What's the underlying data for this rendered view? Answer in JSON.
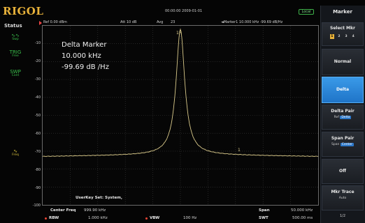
{
  "brand": {
    "logo_text": "RIGOL"
  },
  "header": {
    "datetime": "00:00:00 2009-01-01",
    "remote_state": "Local",
    "ref_level": "Ref 0.00 dBm",
    "attenuation": "Att  10 dB",
    "avg_label": "Avg",
    "avg_count": "23",
    "marker_readout": "◄Marker1  10.000 kHz  -99.69 dB/Hz"
  },
  "status": {
    "title": "Status",
    "items": [
      {
        "label": "Swp",
        "icon": "sweep-wave-icon",
        "glyph": "∿∿"
      },
      {
        "label": "Free",
        "icon": "trigger-free-icon",
        "glyph": "TRIG"
      },
      {
        "label": "Cont",
        "icon": "sweep-cont-icon",
        "glyph": "SWP"
      },
      {
        "label": "Freq",
        "icon": "frequency-icon",
        "glyph": "∿"
      }
    ]
  },
  "y_axis": {
    "labels": [
      "-10",
      "-20",
      "-30",
      "-40",
      "-50",
      "-60",
      "-70",
      "-80",
      "-90",
      "-100"
    ]
  },
  "marker_info": {
    "title": "Delta Marker",
    "freq": "10.000 kHz",
    "level": "-99.69 dB /Hz"
  },
  "trace": {
    "marker_tag_top": "1R",
    "marker_tag_delta": "1",
    "color": "#d9c98a",
    "peak_fraction_x": 0.5,
    "floor_db": -72,
    "peak_db": -2
  },
  "userkey": "UserKey Set:   System,",
  "footer": {
    "center_freq_label": "Center Freq",
    "center_freq_value": "999.90 kHz",
    "span_label": "Span",
    "span_value": "50.000 kHz",
    "rbw_label": "RBW",
    "rbw_value": "1.000 kHz",
    "vbw_label": "VBW",
    "vbw_value": "100 Hz",
    "swt_label": "SWT",
    "swt_value": "500.00 ms"
  },
  "menu": {
    "title": "Marker",
    "select_mkr": "Select Mkr",
    "mkr_numbers": [
      "1",
      "2",
      "3",
      "4"
    ],
    "normal": "Normal",
    "delta": "Delta",
    "delta_pair": "Delta Pair",
    "delta_pair_ref": "Ref",
    "delta_pair_delta": "Delta",
    "span_pair": "Span Pair",
    "span_pair_span": "Span",
    "span_pair_center": "Center",
    "off": "Off",
    "mkr_trace": "Mkr Trace",
    "mkr_trace_value": "Auto",
    "page": "1/2"
  },
  "colors": {
    "accent_blue": "#2d78c9",
    "logo_gold": "#e8b23a",
    "status_green": "#3bc24c"
  }
}
